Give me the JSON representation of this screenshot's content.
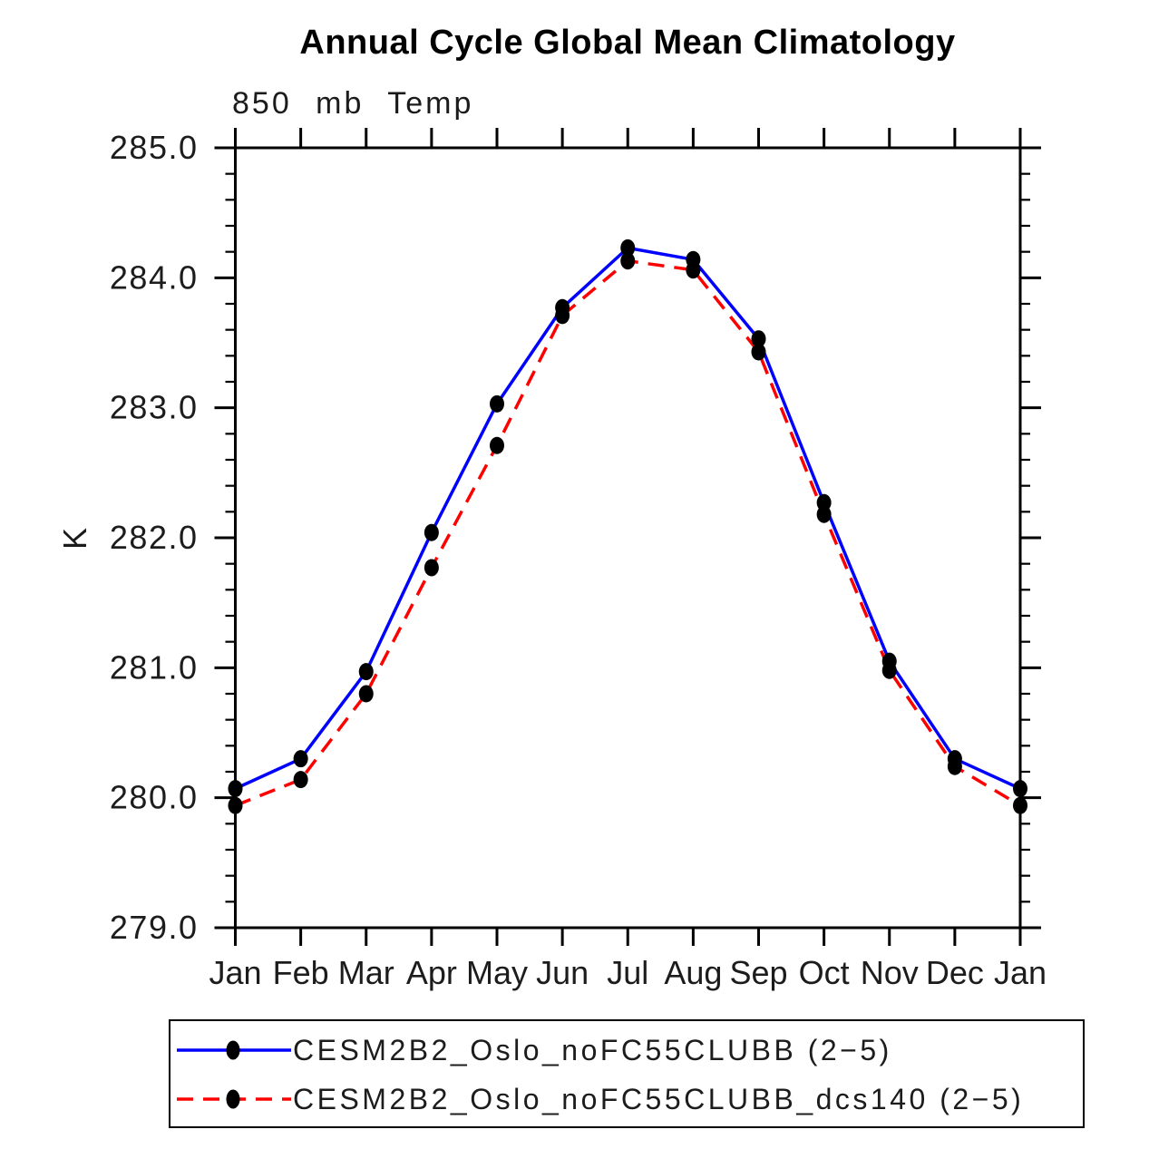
{
  "chart_data": {
    "type": "line",
    "title": "Annual Cycle Global Mean Climatology",
    "subtitle": "850 mb Temp",
    "ylabel": "K",
    "xlabel": "",
    "grid": false,
    "legend_position": "bottom",
    "x_categories": [
      "Jan",
      "Feb",
      "Mar",
      "Apr",
      "May",
      "Jun",
      "Jul",
      "Aug",
      "Sep",
      "Oct",
      "Nov",
      "Dec",
      "Jan"
    ],
    "y_axis": {
      "min": 279.0,
      "max": 285.0,
      "major_step": 1.0,
      "minor_step": 0.2,
      "tick_labels": [
        "279.0",
        "280.0",
        "281.0",
        "282.0",
        "283.0",
        "284.0",
        "285.0"
      ]
    },
    "series": [
      {
        "name": "CESM2B2_Oslo_noFC55CLUBB (2−5)",
        "color": "#0000ff",
        "line_style": "solid",
        "marker": "filled-circle",
        "marker_color": "#000000",
        "values": [
          280.07,
          280.3,
          280.97,
          282.04,
          283.03,
          283.77,
          284.23,
          284.14,
          283.53,
          282.27,
          281.05,
          280.3,
          280.07
        ]
      },
      {
        "name": "CESM2B2_Oslo_noFC55CLUBB_dcs140 (2−5)",
        "color": "#ff0000",
        "line_style": "dashed",
        "marker": "filled-circle",
        "marker_color": "#000000",
        "values": [
          279.94,
          280.14,
          280.8,
          281.77,
          282.71,
          283.71,
          284.13,
          284.06,
          283.43,
          282.18,
          280.98,
          280.24,
          279.94
        ]
      }
    ]
  }
}
